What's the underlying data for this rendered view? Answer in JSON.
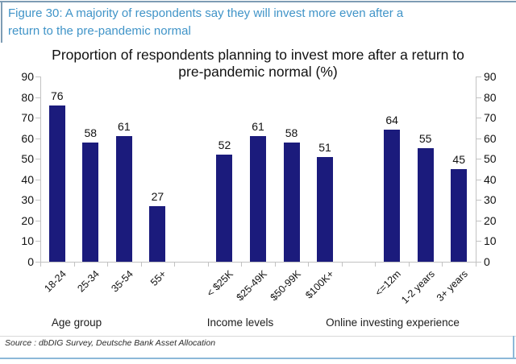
{
  "header": {
    "caption": "Figure 30: A majority of respondents say they will invest more even after a return to the pre-pandemic normal",
    "caption_lines": [
      "Figure 30: A majority of respondents say they will invest more even after a",
      "return to the pre-pandemic normal"
    ]
  },
  "chart_data": {
    "type": "bar",
    "title": "Proportion of respondents planning to invest more after a return to pre-pandemic normal (%)",
    "title_lines": [
      "Proportion of respondents planning to invest more after a return to",
      "pre-pandemic normal (%)"
    ],
    "ylabel": "",
    "xlabel": "",
    "ylim": [
      0,
      90
    ],
    "yticks": [
      0,
      10,
      20,
      30,
      40,
      50,
      60,
      70,
      80,
      90
    ],
    "grid": false,
    "legend": "none",
    "bar_color": "#1b1b7c",
    "groups": [
      {
        "label": "Age group",
        "categories": [
          "18-24",
          "25-34",
          "35-54",
          "55+"
        ],
        "values": [
          76,
          58,
          61,
          27
        ]
      },
      {
        "label": "Income levels",
        "categories": [
          "< $25K",
          "$25-49K",
          "$50-99K",
          "$100K+"
        ],
        "values": [
          52,
          61,
          58,
          51
        ]
      },
      {
        "label": "Online investing experience",
        "categories": [
          "<=12m",
          "1-2 years",
          "3+ years"
        ],
        "values": [
          64,
          55,
          45
        ]
      }
    ]
  },
  "source": {
    "text": "Source : dbDIG Survey, Deutsche Bank Asset Allocation"
  },
  "colors": {
    "header_text": "#4094c8",
    "header_border": "#7e9cb4",
    "bar": "#1b1b7c",
    "axis": "#c2c2c2",
    "footer_line": "#8cb8d8",
    "source_divider": "#d8d8d8",
    "text": "#111111"
  }
}
